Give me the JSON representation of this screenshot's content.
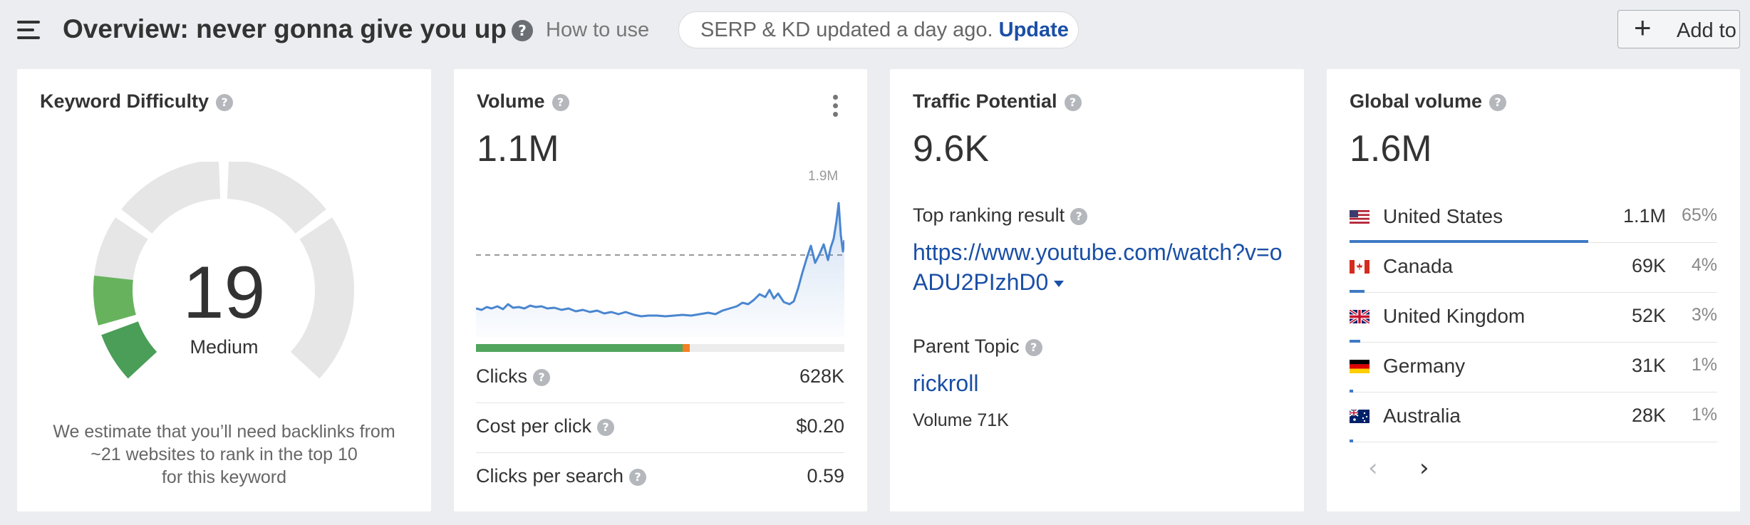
{
  "header": {
    "title": "Overview: never gonna give you up",
    "how_to_use": "How to use",
    "serp_status": "SERP & KD updated a day ago.",
    "update_label": "Update",
    "add_to_label": "Add to"
  },
  "keyword_difficulty": {
    "title": "Keyword Difficulty",
    "value": "19",
    "level": "Medium",
    "description_lines": [
      "We estimate that you’ll need backlinks from",
      "~21 websites to rank in the top 10",
      "for this keyword"
    ]
  },
  "volume": {
    "title": "Volume",
    "value": "1.1M",
    "chart_max_label": "1.9M",
    "clicks_split": {
      "organic": 0.56,
      "paid": 0.02
    },
    "metrics": [
      {
        "label": "Clicks",
        "value": "628K"
      },
      {
        "label": "Cost per click",
        "value": "$0.20"
      },
      {
        "label": "Clicks per search",
        "value": "0.59"
      }
    ]
  },
  "traffic_potential": {
    "title": "Traffic Potential",
    "value": "9.6K",
    "top_result_label": "Top ranking result",
    "top_result_url": "https://www.youtube.com/watch?v=oADU2PIzhD0",
    "parent_topic_label": "Parent Topic",
    "parent_topic": "rickroll",
    "parent_topic_volume": "Volume 71K"
  },
  "global_volume": {
    "title": "Global volume",
    "value": "1.6M",
    "countries": [
      {
        "name": "United States",
        "volume": "1.1M",
        "percent": "65%",
        "share": 0.65,
        "flag": "us-flag-icon"
      },
      {
        "name": "Canada",
        "volume": "69K",
        "percent": "4%",
        "share": 0.04,
        "flag": "ca-flag-icon"
      },
      {
        "name": "United Kingdom",
        "volume": "52K",
        "percent": "3%",
        "share": 0.03,
        "flag": "uk-flag-icon"
      },
      {
        "name": "Germany",
        "volume": "31K",
        "percent": "1%",
        "share": 0.01,
        "flag": "de-flag-icon"
      },
      {
        "name": "Australia",
        "volume": "28K",
        "percent": "1%",
        "share": 0.01,
        "flag": "au-flag-icon"
      }
    ]
  },
  "colors": {
    "accent_link": "#1a4fa6",
    "kd_green": "#4fa25a",
    "bar_blue": "#3f7ac4",
    "chart_line": "#4a86d0",
    "clicks_orange": "#f47f24"
  }
}
